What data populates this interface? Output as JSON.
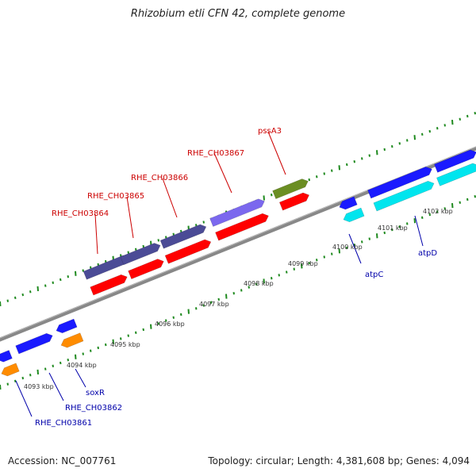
{
  "title": "Rhizobium etli CFN 42, complete genome",
  "footer": {
    "accession": "Accession: NC_007761",
    "summary": "Topology: circular; Length: 4,381,608 bp; Genes: 4,094"
  },
  "colors": {
    "backbone": "#8c8c8c",
    "tick_dots": "#1f8a1f",
    "label_red": "#cc0000",
    "label_blue": "#0000aa",
    "gene_purple": "#4b4b96",
    "gene_lavender": "#7b68ee",
    "gene_olive": "#6b8e23",
    "gene_red": "#ff0000",
    "gene_blue": "#1a1aff",
    "gene_cyan": "#00e5ee",
    "gene_orange": "#ff8c00"
  },
  "kbp_ticks": [
    "4093 kbp",
    "4094 kbp",
    "4095 kbp",
    "4096 kbp",
    "4097 kbp",
    "4098 kbp",
    "4099 kbp",
    "4100 kbp",
    "4101 kbp",
    "4102 kbp"
  ],
  "labels_top": [
    {
      "text": "RHE_CH03864",
      "color": "red"
    },
    {
      "text": "RHE_CH03865",
      "color": "red"
    },
    {
      "text": "RHE_CH03866",
      "color": "red"
    },
    {
      "text": "RHE_CH03867",
      "color": "red"
    },
    {
      "text": "pssA3",
      "color": "red"
    }
  ],
  "labels_bottom": [
    {
      "text": "RHE_CH03861",
      "color": "blue"
    },
    {
      "text": "RHE_CH03862",
      "color": "blue"
    },
    {
      "text": "soxR",
      "color": "blue"
    },
    {
      "text": "atpC",
      "color": "blue"
    },
    {
      "text": "atpD",
      "color": "blue"
    }
  ]
}
